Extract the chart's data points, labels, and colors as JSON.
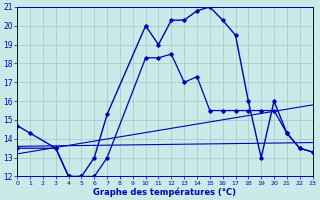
{
  "xlabel": "Graphe des températures (°C)",
  "bg_color": "#cce9e9",
  "grid_color": "#a8cccc",
  "line_color": "#0000bb",
  "xlim": [
    0,
    23
  ],
  "ylim": [
    12,
    21
  ],
  "xticks": [
    0,
    1,
    2,
    3,
    4,
    5,
    6,
    7,
    8,
    9,
    10,
    11,
    12,
    13,
    14,
    15,
    16,
    17,
    18,
    19,
    20,
    21,
    22,
    23
  ],
  "yticks": [
    12,
    13,
    14,
    15,
    16,
    17,
    18,
    19,
    20,
    21
  ],
  "line1_x": [
    0,
    1,
    3,
    4,
    5,
    6,
    7,
    10,
    11,
    12,
    13,
    14,
    15,
    16,
    17,
    18,
    19,
    20,
    21,
    22,
    23
  ],
  "line1_y": [
    14.7,
    14.3,
    13.5,
    12.0,
    12.0,
    13.0,
    15.3,
    20.0,
    19.0,
    20.3,
    20.3,
    20.8,
    21.0,
    20.3,
    19.5,
    16.0,
    13.0,
    16.0,
    14.3,
    13.5,
    13.3
  ],
  "line2_x": [
    0,
    3,
    4,
    5,
    6,
    7,
    10,
    11,
    12,
    13,
    14,
    15,
    16,
    17,
    18,
    19,
    20,
    21,
    22,
    23
  ],
  "line2_y": [
    13.5,
    13.5,
    12.0,
    12.0,
    12.0,
    13.0,
    18.3,
    18.3,
    18.5,
    17.0,
    17.3,
    15.5,
    15.5,
    15.5,
    15.5,
    15.5,
    15.5,
    14.3,
    13.5,
    13.3
  ],
  "line3_x": [
    0,
    23
  ],
  "line3_y": [
    13.2,
    15.8
  ],
  "line4_x": [
    0,
    23
  ],
  "line4_y": [
    13.6,
    13.8
  ]
}
